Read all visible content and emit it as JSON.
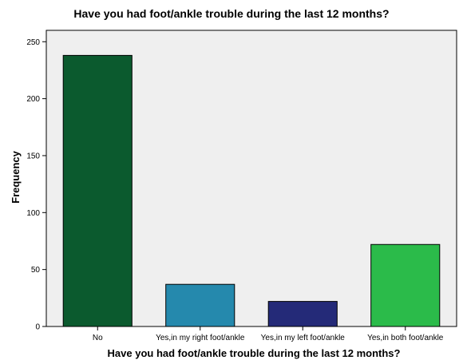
{
  "chart_data": {
    "type": "bar",
    "title": "Have you had foot/ankle trouble during the last 12 months?",
    "xlabel": "Have you had foot/ankle trouble during the last 12 months?",
    "ylabel": "Frequency",
    "categories": [
      "No",
      "Yes,in my right foot/ankle",
      "Yes,in my left foot/ankle",
      "Yes,in both foot/ankle"
    ],
    "values": [
      238,
      37,
      22,
      72
    ],
    "colors": [
      "#0b5a2e",
      "#2589ad",
      "#242a78",
      "#2bbb4a"
    ],
    "ylim": [
      0,
      260
    ],
    "yticks": [
      0,
      50,
      100,
      150,
      200,
      250
    ],
    "grid": false,
    "legend": "none",
    "plot_background": "#efefef",
    "bar_outline": "#000000"
  }
}
